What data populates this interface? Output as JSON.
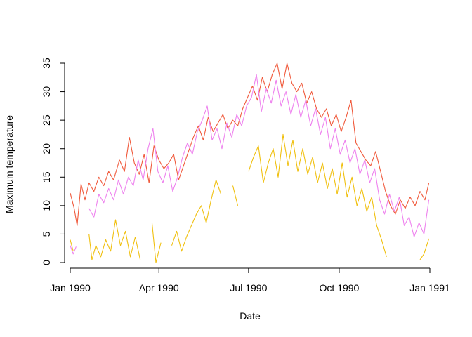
{
  "chart_data": {
    "type": "line",
    "title": "",
    "xlabel": "Date",
    "ylabel": "Maximum temperature",
    "x_range": [
      "1990-01-01",
      "1991-01-01"
    ],
    "ylim": [
      0,
      35
    ],
    "x_ticks": [
      {
        "date": "1990-01-01",
        "label": "Jan 1990"
      },
      {
        "date": "1990-04-01",
        "label": "Apr 1990"
      },
      {
        "date": "1990-07-01",
        "label": "Jul 1990"
      },
      {
        "date": "1990-10-01",
        "label": "Oct 1990"
      },
      {
        "date": "1991-01-01",
        "label": "Jan 1991"
      }
    ],
    "y_ticks": [
      0,
      5,
      10,
      15,
      20,
      25,
      30,
      35
    ],
    "grid": false,
    "legend": "none",
    "series": [
      {
        "color": "#f05a3c",
        "points": [
          [
            "1990-01-01",
            12.2
          ],
          [
            "1990-01-05",
            9.5
          ],
          [
            "1990-01-08",
            6.5
          ],
          [
            "1990-01-12",
            13.8
          ],
          [
            "1990-01-16",
            11.0
          ],
          [
            "1990-01-20",
            14.0
          ],
          [
            "1990-01-25",
            12.5
          ],
          [
            "1990-01-30",
            15.0
          ],
          [
            "1990-02-04",
            13.5
          ],
          [
            "1990-02-09",
            16.0
          ],
          [
            "1990-02-14",
            14.5
          ],
          [
            "1990-02-20",
            18.0
          ],
          [
            "1990-02-25",
            16.0
          ],
          [
            "1990-03-02",
            22.0
          ],
          [
            "1990-03-07",
            17.5
          ],
          [
            "1990-03-12",
            15.5
          ],
          [
            "1990-03-17",
            19.0
          ],
          [
            "1990-03-22",
            14.0
          ],
          [
            "1990-03-27",
            20.5
          ],
          [
            "1990-04-01",
            18.0
          ],
          [
            "1990-04-06",
            16.5
          ],
          [
            "1990-04-11",
            17.5
          ],
          [
            "1990-04-16",
            19.0
          ],
          [
            "1990-04-21",
            14.5
          ],
          [
            "1990-04-26",
            17.0
          ],
          [
            "1990-05-01",
            19.5
          ],
          [
            "1990-05-06",
            22.0
          ],
          [
            "1990-05-11",
            24.0
          ],
          [
            "1990-05-16",
            21.5
          ],
          [
            "1990-05-21",
            25.5
          ],
          [
            "1990-05-26",
            23.0
          ],
          [
            "1990-05-31",
            24.5
          ],
          [
            "1990-06-05",
            26.0
          ],
          [
            "1990-06-10",
            23.5
          ],
          [
            "1990-06-15",
            25.0
          ],
          [
            "1990-06-20",
            24.0
          ],
          [
            "1990-06-25",
            27.0
          ],
          [
            "1990-06-30",
            29.0
          ],
          [
            "1990-07-05",
            31.0
          ],
          [
            "1990-07-10",
            28.5
          ],
          [
            "1990-07-15",
            32.5
          ],
          [
            "1990-07-20",
            30.0
          ],
          [
            "1990-07-25",
            33.0
          ],
          [
            "1990-07-30",
            35.0
          ],
          [
            "1990-08-04",
            30.5
          ],
          [
            "1990-08-09",
            35.0
          ],
          [
            "1990-08-14",
            31.5
          ],
          [
            "1990-08-19",
            30.0
          ],
          [
            "1990-08-24",
            31.5
          ],
          [
            "1990-08-29",
            28.0
          ],
          [
            "1990-09-03",
            30.0
          ],
          [
            "1990-09-08",
            27.0
          ],
          [
            "1990-09-13",
            25.5
          ],
          [
            "1990-09-18",
            27.0
          ],
          [
            "1990-09-23",
            24.0
          ],
          [
            "1990-09-28",
            26.0
          ],
          [
            "1990-10-03",
            23.0
          ],
          [
            "1990-10-08",
            25.5
          ],
          [
            "1990-10-13",
            28.5
          ],
          [
            "1990-10-18",
            21.0
          ],
          [
            "1990-10-23",
            19.5
          ],
          [
            "1990-10-28",
            18.0
          ],
          [
            "1990-11-02",
            17.0
          ],
          [
            "1990-11-07",
            19.5
          ],
          [
            "1990-11-12",
            16.0
          ],
          [
            "1990-11-17",
            12.5
          ],
          [
            "1990-11-22",
            10.0
          ],
          [
            "1990-11-27",
            8.5
          ],
          [
            "1990-12-02",
            11.0
          ],
          [
            "1990-12-07",
            9.5
          ],
          [
            "1990-12-12",
            11.5
          ],
          [
            "1990-12-17",
            10.0
          ],
          [
            "1990-12-22",
            12.5
          ],
          [
            "1990-12-27",
            11.0
          ],
          [
            "1990-12-31",
            14.0
          ]
        ]
      },
      {
        "color": "#ee82ee",
        "points": [
          [
            "1990-01-01",
            3.0
          ],
          [
            "1990-01-04",
            1.5
          ],
          [
            "1990-01-07",
            2.8
          ],
          [
            "1990-01-10",
            null
          ],
          [
            "1990-01-20",
            9.5
          ],
          [
            "1990-01-25",
            8.0
          ],
          [
            "1990-01-30",
            12.0
          ],
          [
            "1990-02-04",
            10.5
          ],
          [
            "1990-02-09",
            13.0
          ],
          [
            "1990-02-14",
            11.0
          ],
          [
            "1990-02-19",
            14.5
          ],
          [
            "1990-02-24",
            12.0
          ],
          [
            "1990-03-01",
            15.0
          ],
          [
            "1990-03-06",
            13.5
          ],
          [
            "1990-03-11",
            18.0
          ],
          [
            "1990-03-16",
            14.5
          ],
          [
            "1990-03-21",
            20.0
          ],
          [
            "1990-03-26",
            23.5
          ],
          [
            "1990-03-31",
            16.0
          ],
          [
            "1990-04-05",
            14.0
          ],
          [
            "1990-04-10",
            17.0
          ],
          [
            "1990-04-15",
            12.5
          ],
          [
            "1990-04-20",
            15.0
          ],
          [
            "1990-04-25",
            18.5
          ],
          [
            "1990-04-30",
            21.0
          ],
          [
            "1990-05-05",
            19.0
          ],
          [
            "1990-05-10",
            23.0
          ],
          [
            "1990-05-15",
            25.0
          ],
          [
            "1990-05-20",
            27.5
          ],
          [
            "1990-05-25",
            21.5
          ],
          [
            "1990-05-30",
            23.5
          ],
          [
            "1990-06-04",
            20.0
          ],
          [
            "1990-06-09",
            24.5
          ],
          [
            "1990-06-14",
            22.0
          ],
          [
            "1990-06-19",
            26.0
          ],
          [
            "1990-06-24",
            24.0
          ],
          [
            "1990-06-29",
            27.5
          ],
          [
            "1990-07-04",
            29.0
          ],
          [
            "1990-07-09",
            33.0
          ],
          [
            "1990-07-14",
            26.5
          ],
          [
            "1990-07-19",
            30.5
          ],
          [
            "1990-07-24",
            28.0
          ],
          [
            "1990-07-29",
            32.0
          ],
          [
            "1990-08-03",
            27.5
          ],
          [
            "1990-08-08",
            30.0
          ],
          [
            "1990-08-13",
            26.0
          ],
          [
            "1990-08-18",
            29.5
          ],
          [
            "1990-08-23",
            25.5
          ],
          [
            "1990-08-28",
            28.5
          ],
          [
            "1990-09-02",
            24.0
          ],
          [
            "1990-09-07",
            27.0
          ],
          [
            "1990-09-12",
            22.5
          ],
          [
            "1990-09-17",
            25.5
          ],
          [
            "1990-09-22",
            20.0
          ],
          [
            "1990-09-27",
            23.5
          ],
          [
            "1990-10-02",
            19.0
          ],
          [
            "1990-10-07",
            21.5
          ],
          [
            "1990-10-12",
            17.5
          ],
          [
            "1990-10-17",
            20.0
          ],
          [
            "1990-10-22",
            15.5
          ],
          [
            "1990-10-27",
            18.0
          ],
          [
            "1990-11-01",
            14.0
          ],
          [
            "1990-11-06",
            16.5
          ],
          [
            "1990-11-11",
            11.0
          ],
          [
            "1990-11-16",
            8.5
          ],
          [
            "1990-11-21",
            12.0
          ],
          [
            "1990-11-26",
            9.0
          ],
          [
            "1990-12-01",
            11.5
          ],
          [
            "1990-12-06",
            6.5
          ],
          [
            "1990-12-11",
            8.0
          ],
          [
            "1990-12-16",
            4.5
          ],
          [
            "1990-12-21",
            7.0
          ],
          [
            "1990-12-26",
            5.0
          ],
          [
            "1990-12-31",
            11.0
          ]
        ]
      },
      {
        "color": "#f0c010",
        "points": [
          [
            "1990-01-01",
            4.0
          ],
          [
            "1990-01-04",
            2.0
          ],
          [
            "1990-01-07",
            null
          ],
          [
            "1990-01-20",
            5.0
          ],
          [
            "1990-01-23",
            0.5
          ],
          [
            "1990-01-27",
            3.0
          ],
          [
            "1990-02-01",
            1.0
          ],
          [
            "1990-02-06",
            4.0
          ],
          [
            "1990-02-11",
            2.0
          ],
          [
            "1990-02-16",
            7.5
          ],
          [
            "1990-02-21",
            3.0
          ],
          [
            "1990-02-26",
            5.5
          ],
          [
            "1990-03-03",
            1.0
          ],
          [
            "1990-03-08",
            4.5
          ],
          [
            "1990-03-13",
            0.5
          ],
          [
            "1990-03-18",
            null
          ],
          [
            "1990-03-25",
            7.0
          ],
          [
            "1990-03-29",
            0.0
          ],
          [
            "1990-04-03",
            3.5
          ],
          [
            "1990-04-08",
            null
          ],
          [
            "1990-04-14",
            3.0
          ],
          [
            "1990-04-19",
            5.5
          ],
          [
            "1990-04-24",
            2.0
          ],
          [
            "1990-04-29",
            4.5
          ],
          [
            "1990-05-04",
            6.5
          ],
          [
            "1990-05-09",
            8.5
          ],
          [
            "1990-05-14",
            10.0
          ],
          [
            "1990-05-19",
            7.0
          ],
          [
            "1990-05-24",
            11.0
          ],
          [
            "1990-05-29",
            14.5
          ],
          [
            "1990-06-03",
            12.0
          ],
          [
            "1990-06-08",
            null
          ],
          [
            "1990-06-15",
            13.5
          ],
          [
            "1990-06-20",
            10.0
          ],
          [
            "1990-06-25",
            null
          ],
          [
            "1990-07-01",
            16.0
          ],
          [
            "1990-07-06",
            18.5
          ],
          [
            "1990-07-11",
            20.5
          ],
          [
            "1990-07-16",
            14.0
          ],
          [
            "1990-07-21",
            17.5
          ],
          [
            "1990-07-26",
            20.0
          ],
          [
            "1990-07-31",
            15.0
          ],
          [
            "1990-08-05",
            22.5
          ],
          [
            "1990-08-10",
            17.0
          ],
          [
            "1990-08-15",
            21.5
          ],
          [
            "1990-08-20",
            16.0
          ],
          [
            "1990-08-25",
            20.0
          ],
          [
            "1990-08-30",
            15.5
          ],
          [
            "1990-09-04",
            18.5
          ],
          [
            "1990-09-09",
            14.0
          ],
          [
            "1990-09-14",
            17.5
          ],
          [
            "1990-09-19",
            13.0
          ],
          [
            "1990-09-24",
            16.5
          ],
          [
            "1990-09-29",
            12.0
          ],
          [
            "1990-10-04",
            17.5
          ],
          [
            "1990-10-09",
            11.5
          ],
          [
            "1990-10-14",
            15.0
          ],
          [
            "1990-10-19",
            10.0
          ],
          [
            "1990-10-24",
            13.0
          ],
          [
            "1990-10-29",
            9.0
          ],
          [
            "1990-11-03",
            11.5
          ],
          [
            "1990-11-08",
            6.5
          ],
          [
            "1990-11-13",
            4.0
          ],
          [
            "1990-11-18",
            1.0
          ],
          [
            "1990-11-23",
            null
          ],
          [
            "1990-12-22",
            0.5
          ],
          [
            "1990-12-26",
            1.5
          ],
          [
            "1990-12-31",
            4.2
          ]
        ]
      }
    ]
  }
}
